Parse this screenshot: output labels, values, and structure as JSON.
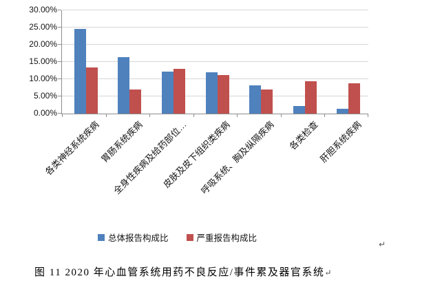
{
  "chart_data": {
    "type": "bar",
    "title": "",
    "xlabel": "",
    "ylabel": "",
    "ylim": [
      0,
      30
    ],
    "y_tick_step": 5,
    "y_tick_labels": [
      "0.00%",
      "5.00%",
      "10.00%",
      "15.00%",
      "20.00%",
      "25.00%",
      "30.00%"
    ],
    "grid": true,
    "legend_position": "bottom",
    "categories": [
      "各类神经系统疾病",
      "胃肠系统疾病",
      "全身性疾病及给药部位…",
      "皮肤及皮下组织类疾病",
      "呼吸系统、胸及纵隔疾病",
      "各类检查",
      "肝胆系统疾病"
    ],
    "series": [
      {
        "name": "总体报告构成比",
        "color": "#4F81BD",
        "values": [
          24.6,
          16.5,
          12.3,
          12.1,
          8.3,
          2.2,
          1.5
        ]
      },
      {
        "name": "严重报告构成比",
        "color": "#C0504D",
        "values": [
          13.5,
          7.1,
          13.1,
          11.2,
          7.0,
          9.5,
          8.9
        ]
      }
    ]
  },
  "marks": {
    "chart_paragraph_mark": "↵"
  },
  "caption": {
    "figure_text": "图 11  2020 年心血管系统用药不良反应/事件累及器官系统",
    "paragraph_mark": "↵"
  }
}
